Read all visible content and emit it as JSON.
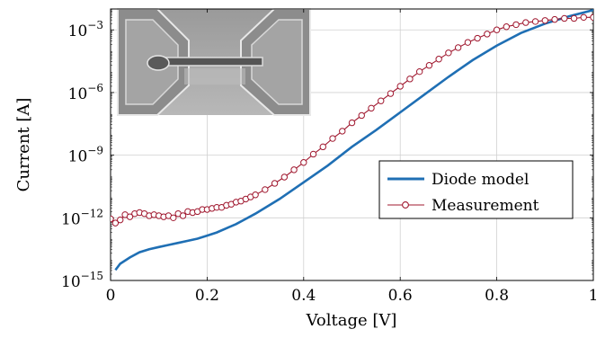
{
  "chart_data": {
    "type": "line",
    "xlabel": "Voltage [V]",
    "ylabel": "Current [A]",
    "xlim": [
      0,
      1
    ],
    "ylim_log10": [
      -15,
      -2
    ],
    "y_scale": "log",
    "grid": true,
    "legend_position": "lower-right",
    "x_ticks": [
      {
        "value": 0,
        "label": "0"
      },
      {
        "value": 0.2,
        "label": "0.2"
      },
      {
        "value": 0.4,
        "label": "0.4"
      },
      {
        "value": 0.6,
        "label": "0.6"
      },
      {
        "value": 0.8,
        "label": "0.8"
      },
      {
        "value": 1,
        "label": "1"
      }
    ],
    "y_ticks": [
      {
        "exp": -15,
        "mantissa": "10",
        "power": "−15"
      },
      {
        "exp": -12,
        "mantissa": "10",
        "power": "−12"
      },
      {
        "exp": -9,
        "mantissa": "10",
        "power": "−9"
      },
      {
        "exp": -6,
        "mantissa": "10",
        "power": "−6"
      },
      {
        "exp": -3,
        "mantissa": "10",
        "power": "−3"
      }
    ],
    "series": [
      {
        "name": "Diode model",
        "color": "#1f6fb4",
        "style": "solid-line",
        "x": [
          0.01,
          0.02,
          0.04,
          0.06,
          0.08,
          0.1,
          0.12,
          0.14,
          0.16,
          0.18,
          0.2,
          0.22,
          0.24,
          0.26,
          0.28,
          0.3,
          0.35,
          0.4,
          0.45,
          0.5,
          0.55,
          0.6,
          0.65,
          0.7,
          0.75,
          0.8,
          0.85,
          0.9,
          0.95,
          1.0
        ],
        "log10_y": [
          -14.5,
          -14.2,
          -13.9,
          -13.65,
          -13.5,
          -13.4,
          -13.3,
          -13.2,
          -13.1,
          -13.0,
          -12.85,
          -12.7,
          -12.5,
          -12.3,
          -12.05,
          -11.8,
          -11.1,
          -10.3,
          -9.5,
          -8.6,
          -7.8,
          -6.95,
          -6.1,
          -5.25,
          -4.45,
          -3.75,
          -3.15,
          -2.7,
          -2.35,
          -2.05
        ]
      },
      {
        "name": "Measurement",
        "color": "#a0182f",
        "style": "line-with-circle-markers",
        "x": [
          0.0,
          0.01,
          0.02,
          0.03,
          0.04,
          0.05,
          0.06,
          0.07,
          0.08,
          0.09,
          0.1,
          0.11,
          0.12,
          0.13,
          0.14,
          0.15,
          0.16,
          0.17,
          0.18,
          0.19,
          0.2,
          0.21,
          0.22,
          0.23,
          0.24,
          0.25,
          0.26,
          0.27,
          0.28,
          0.29,
          0.3,
          0.32,
          0.34,
          0.36,
          0.38,
          0.4,
          0.42,
          0.44,
          0.46,
          0.48,
          0.5,
          0.52,
          0.54,
          0.56,
          0.58,
          0.6,
          0.62,
          0.64,
          0.66,
          0.68,
          0.7,
          0.72,
          0.74,
          0.76,
          0.78,
          0.8,
          0.82,
          0.84,
          0.86,
          0.88,
          0.9,
          0.92,
          0.94,
          0.96,
          0.98,
          1.0
        ],
        "log10_y": [
          -12.05,
          -12.25,
          -12.1,
          -11.85,
          -11.95,
          -11.8,
          -11.75,
          -11.8,
          -11.9,
          -11.85,
          -11.9,
          -11.95,
          -11.9,
          -12.0,
          -11.8,
          -11.9,
          -11.7,
          -11.75,
          -11.7,
          -11.6,
          -11.6,
          -11.55,
          -11.5,
          -11.5,
          -11.4,
          -11.35,
          -11.25,
          -11.2,
          -11.1,
          -11.0,
          -10.9,
          -10.65,
          -10.35,
          -10.05,
          -9.7,
          -9.35,
          -8.95,
          -8.6,
          -8.2,
          -7.85,
          -7.45,
          -7.1,
          -6.75,
          -6.4,
          -6.05,
          -5.7,
          -5.35,
          -5.0,
          -4.7,
          -4.4,
          -4.1,
          -3.85,
          -3.6,
          -3.4,
          -3.2,
          -3.0,
          -2.85,
          -2.75,
          -2.65,
          -2.6,
          -2.55,
          -2.5,
          -2.45,
          -2.45,
          -2.4,
          -2.4
        ]
      }
    ],
    "inset": {
      "description_icon": "sem-micrograph-image"
    }
  }
}
